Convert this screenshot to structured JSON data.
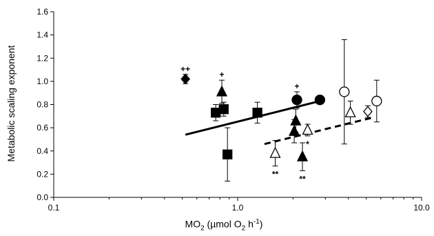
{
  "chart_data": {
    "type": "scatter",
    "xlabel_parts": [
      "MO",
      "2",
      " (µmol O",
      "2",
      " h",
      "-1",
      ")"
    ],
    "ylabel": "Metabolic scaling exponent",
    "x_scale": "log",
    "xlim": [
      0.1,
      10
    ],
    "ylim": [
      0,
      1.6
    ],
    "x_ticks": [
      0.1,
      1,
      10
    ],
    "x_tick_labels": [
      "0.1",
      "1.0",
      "10.0"
    ],
    "y_ticks": [
      0,
      0.2,
      0.4,
      0.6,
      0.8,
      1.0,
      1.2,
      1.4,
      1.6
    ],
    "y_tick_labels": [
      "0.0",
      "0.2",
      "0.4",
      "0.6",
      "0.8",
      "1.0",
      "1.2",
      "1.4",
      "1.6"
    ],
    "grid": false,
    "legend": "none",
    "points": [
      {
        "marker": "diamond-filled",
        "x": 0.52,
        "y": 1.02,
        "err": 0.04,
        "annotation": "++"
      },
      {
        "marker": "square-filled",
        "x": 0.76,
        "y": 0.73,
        "err": 0.07
      },
      {
        "marker": "square-filled",
        "x": 0.84,
        "y": 0.76,
        "err": 0.06
      },
      {
        "marker": "triangle-filled",
        "x": 0.82,
        "y": 0.91,
        "err": 0.1,
        "annotation": "+"
      },
      {
        "marker": "square-filled",
        "x": 0.88,
        "y": 0.37,
        "err": 0.23
      },
      {
        "marker": "square-filled",
        "x": 1.28,
        "y": 0.73,
        "err": 0.09
      },
      {
        "marker": "circle-filled",
        "x": 2.1,
        "y": 0.84,
        "err": 0.07,
        "annotation": "+"
      },
      {
        "marker": "circle-filled",
        "x": 2.8,
        "y": 0.84,
        "err": 0.0
      },
      {
        "marker": "triangle-filled",
        "x": 2.07,
        "y": 0.66,
        "err": 0.1
      },
      {
        "marker": "triangle-filled",
        "x": 2.03,
        "y": 0.57,
        "err": 0.1
      },
      {
        "marker": "triangle-filled",
        "x": 2.25,
        "y": 0.35,
        "err": 0.12,
        "annotation": "**"
      },
      {
        "marker": "triangle-open",
        "x": 1.6,
        "y": 0.38,
        "err": 0.11,
        "annotation": "**"
      },
      {
        "marker": "triangle-open",
        "x": 2.4,
        "y": 0.58,
        "err": 0.05,
        "annotation": "*"
      },
      {
        "marker": "circle-open",
        "x": 3.8,
        "y": 0.91,
        "err": 0.45
      },
      {
        "marker": "triangle-open",
        "x": 4.1,
        "y": 0.73,
        "err": 0.1
      },
      {
        "marker": "diamond-open",
        "x": 5.1,
        "y": 0.74,
        "err": 0.05
      },
      {
        "marker": "circle-open",
        "x": 5.7,
        "y": 0.83,
        "err": 0.18
      }
    ],
    "trend_lines": [
      {
        "style": "solid",
        "x": [
          0.52,
          2.8
        ],
        "y": [
          0.54,
          0.83
        ]
      },
      {
        "style": "dashed",
        "x": [
          1.4,
          5.5
        ],
        "y": [
          0.46,
          0.69
        ]
      }
    ]
  }
}
